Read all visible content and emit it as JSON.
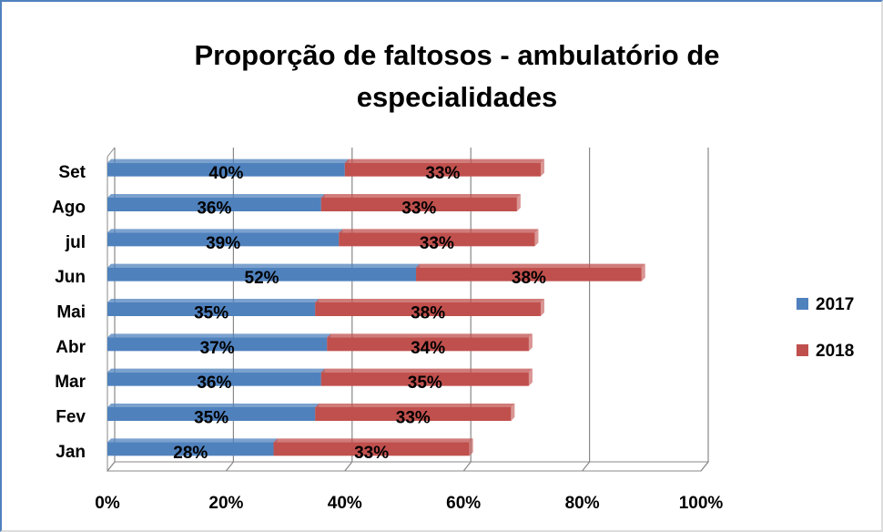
{
  "chart_data": {
    "type": "stacked_bar_horizontal",
    "title": "Proporção de faltosos - ambulatório de especialidades",
    "categories": [
      "Jan",
      "Fev",
      "Mar",
      "Abr",
      "Mai",
      "Jun",
      "jul",
      "Ago",
      "Set"
    ],
    "series": [
      {
        "name": "2017",
        "color": "#4f81bd",
        "values": [
          28,
          35,
          36,
          37,
          35,
          52,
          39,
          36,
          40
        ],
        "value_labels": [
          "28%",
          "35%",
          "36%",
          "37%",
          "35%",
          "52%",
          "39%",
          "36%",
          "40%"
        ]
      },
      {
        "name": "2018",
        "color": "#c0504d",
        "values": [
          33,
          33,
          35,
          34,
          38,
          38,
          33,
          33,
          33
        ],
        "value_labels": [
          "33%",
          "33%",
          "35%",
          "34%",
          "38%",
          "38%",
          "33%",
          "33%",
          "33%"
        ]
      }
    ],
    "xlim": [
      0,
      100
    ],
    "xticks": [
      {
        "value": 0,
        "label": "0%"
      },
      {
        "value": 20,
        "label": "20%"
      },
      {
        "value": 40,
        "label": "40%"
      },
      {
        "value": 60,
        "label": "60%"
      },
      {
        "value": 80,
        "label": "80%"
      },
      {
        "value": 100,
        "label": "100%"
      }
    ],
    "grid": true,
    "legend": "right"
  }
}
